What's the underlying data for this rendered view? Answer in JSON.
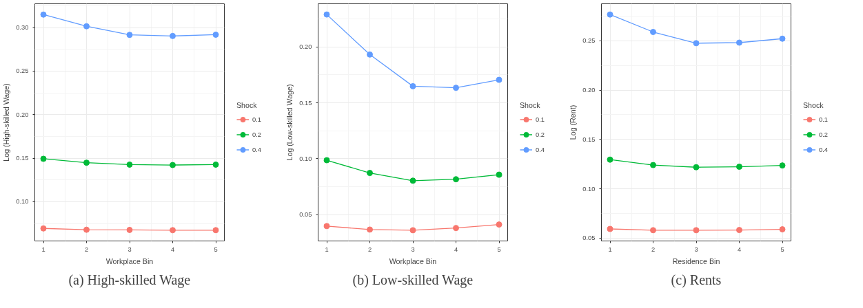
{
  "chart_data": [
    {
      "type": "line",
      "title": "(a) High-skilled Wage",
      "xlabel": "Workplace Bin",
      "ylabel": "Log (High-skilled Wage)",
      "legend_title": "Shock",
      "legend": "right",
      "grid": true,
      "marker": "circle",
      "line_style": "solid",
      "x": [
        1,
        2,
        3,
        4,
        5
      ],
      "xlim": [
        0.8,
        5.2
      ],
      "xticks": [
        1,
        2,
        3,
        4,
        5
      ],
      "ylim": [
        0.0549,
        0.3273
      ],
      "yticks": [
        {
          "value": 0.1,
          "label": "0.10"
        },
        {
          "value": 0.15,
          "label": "0.15"
        },
        {
          "value": 0.2,
          "label": "0.20"
        },
        {
          "value": 0.25,
          "label": "0.25"
        },
        {
          "value": 0.3,
          "label": "0.30"
        }
      ],
      "series": [
        {
          "name": "0.1",
          "color": "#f8766d",
          "values": [
            0.0693,
            0.0678,
            0.0676,
            0.0673,
            0.0673
          ]
        },
        {
          "name": "0.2",
          "color": "#00ba38",
          "values": [
            0.1493,
            0.1448,
            0.1426,
            0.1421,
            0.1426
          ]
        },
        {
          "name": "0.4",
          "color": "#619cff",
          "values": [
            0.3149,
            0.3015,
            0.2916,
            0.2903,
            0.2918
          ]
        }
      ]
    },
    {
      "type": "line",
      "title": "(b) Low-skilled Wage",
      "xlabel": "Workplace Bin",
      "ylabel": "Log (Low-skilled Wage)",
      "legend_title": "Shock",
      "legend": "right",
      "grid": true,
      "marker": "circle",
      "line_style": "solid",
      "x": [
        1,
        2,
        3,
        4,
        5
      ],
      "xlim": [
        0.8,
        5.2
      ],
      "xticks": [
        1,
        2,
        3,
        4,
        5
      ],
      "ylim": [
        0.0265,
        0.2386
      ],
      "yticks": [
        {
          "value": 0.05,
          "label": "0.05"
        },
        {
          "value": 0.1,
          "label": "0.10"
        },
        {
          "value": 0.15,
          "label": "0.15"
        },
        {
          "value": 0.2,
          "label": "0.20"
        }
      ],
      "series": [
        {
          "name": "0.1",
          "color": "#f8766d",
          "values": [
            0.0398,
            0.0367,
            0.0361,
            0.0381,
            0.0412
          ]
        },
        {
          "name": "0.2",
          "color": "#00ba38",
          "values": [
            0.0987,
            0.0873,
            0.0804,
            0.0817,
            0.0858
          ]
        },
        {
          "name": "0.4",
          "color": "#619cff",
          "values": [
            0.229,
            0.1932,
            0.1649,
            0.1635,
            0.1706
          ]
        }
      ]
    },
    {
      "type": "line",
      "title": "(c) Rents",
      "xlabel": "Residence Bin",
      "ylabel": "Log (Rent)",
      "legend_title": "Shock",
      "legend": "right",
      "grid": true,
      "marker": "circle",
      "line_style": "solid",
      "x": [
        1,
        2,
        3,
        4,
        5
      ],
      "xlim": [
        0.8,
        5.2
      ],
      "xticks": [
        1,
        2,
        3,
        4,
        5
      ],
      "ylim": [
        0.047,
        0.2876
      ],
      "yticks": [
        {
          "value": 0.05,
          "label": "0.05"
        },
        {
          "value": 0.1,
          "label": "0.10"
        },
        {
          "value": 0.15,
          "label": "0.15"
        },
        {
          "value": 0.2,
          "label": "0.20"
        },
        {
          "value": 0.25,
          "label": "0.25"
        }
      ],
      "series": [
        {
          "name": "0.1",
          "color": "#f8766d",
          "values": [
            0.0592,
            0.0579,
            0.0579,
            0.0581,
            0.0588
          ]
        },
        {
          "name": "0.2",
          "color": "#00ba38",
          "values": [
            0.1295,
            0.124,
            0.1218,
            0.1223,
            0.1236
          ]
        },
        {
          "name": "0.4",
          "color": "#619cff",
          "values": [
            0.2767,
            0.259,
            0.2476,
            0.2482,
            0.2522
          ]
        }
      ]
    }
  ]
}
